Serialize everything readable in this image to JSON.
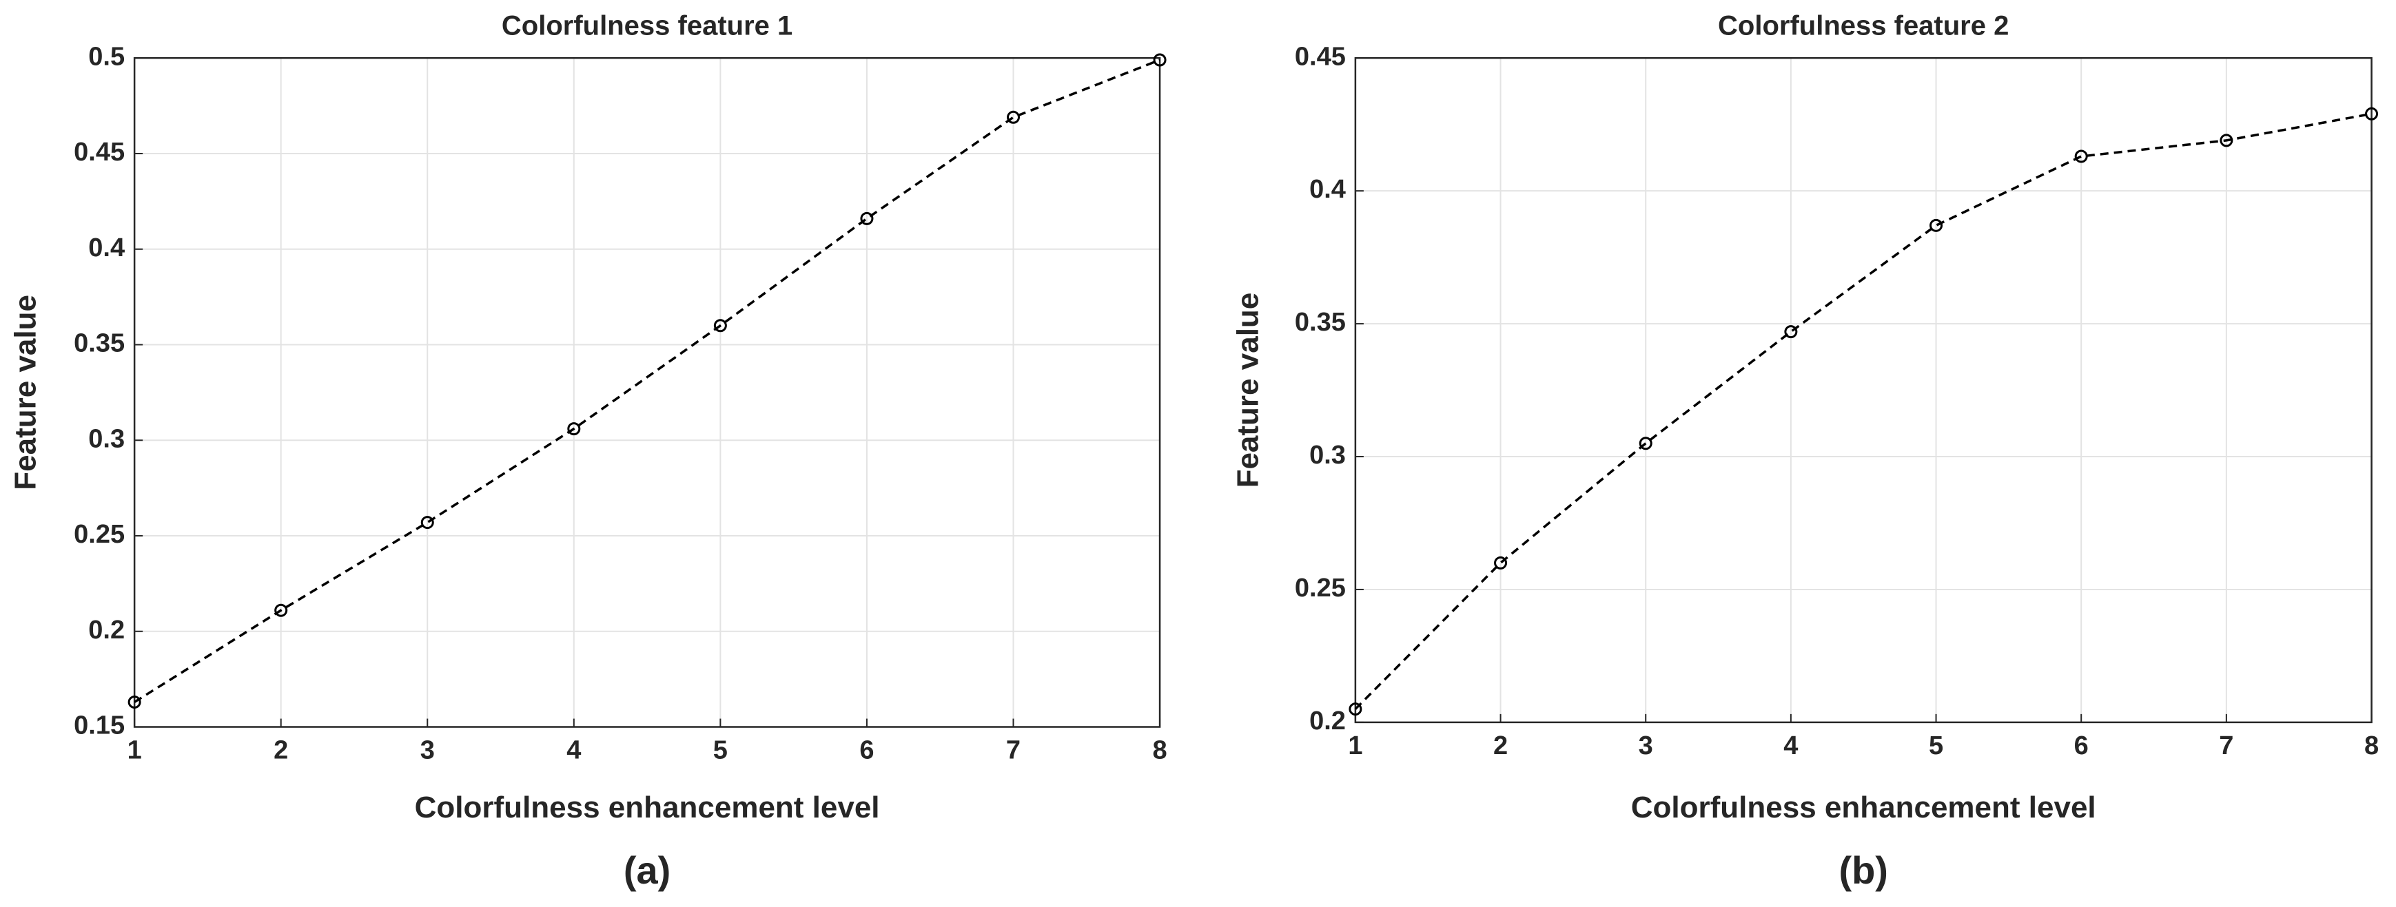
{
  "chart_data": [
    {
      "type": "line",
      "title": "Colorfulness feature 1",
      "xlabel": "Colorfulness enhancement level",
      "ylabel": "Feature value",
      "panel_label": "(a)",
      "x": [
        1,
        2,
        3,
        4,
        5,
        6,
        7,
        8
      ],
      "series": [
        {
          "color": "#000000",
          "values": [
            0.163,
            0.211,
            0.257,
            0.306,
            0.36,
            0.416,
            0.469,
            0.499
          ]
        }
      ],
      "xlim": [
        1,
        8
      ],
      "xticks": [
        1,
        2,
        3,
        4,
        5,
        6,
        7,
        8
      ],
      "ylim": [
        0.15,
        0.5
      ],
      "yticks": [
        0.15,
        0.2,
        0.25,
        0.3,
        0.35,
        0.4,
        0.45,
        0.5
      ],
      "grid": true,
      "line_style": "dashed",
      "marker": "circle"
    },
    {
      "type": "line",
      "title": "Colorfulness feature 2",
      "xlabel": "Colorfulness enhancement level",
      "ylabel": "Feature value",
      "panel_label": "(b)",
      "x": [
        1,
        2,
        3,
        4,
        5,
        6,
        7,
        8
      ],
      "series": [
        {
          "color": "#000000",
          "values": [
            0.205,
            0.26,
            0.305,
            0.347,
            0.387,
            0.413,
            0.419,
            0.429
          ]
        }
      ],
      "xlim": [
        1,
        8
      ],
      "xticks": [
        1,
        2,
        3,
        4,
        5,
        6,
        7,
        8
      ],
      "ylim": [
        0.2,
        0.45
      ],
      "yticks": [
        0.2,
        0.25,
        0.3,
        0.35,
        0.4,
        0.45
      ],
      "grid": true,
      "line_style": "dashed",
      "marker": "circle"
    }
  ]
}
